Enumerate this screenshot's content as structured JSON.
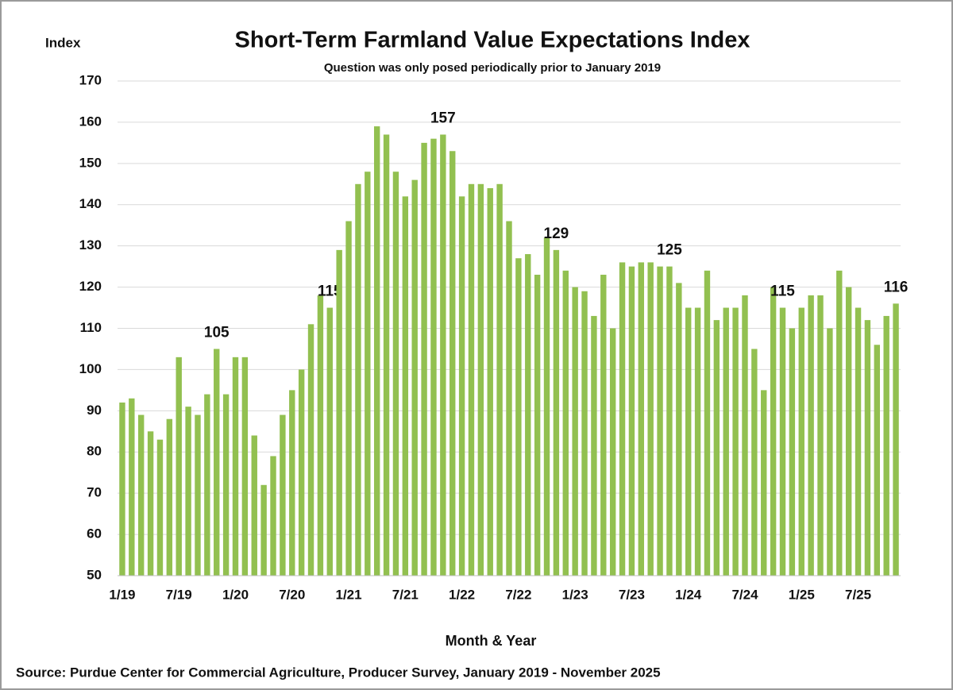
{
  "chart_data": {
    "type": "bar",
    "title": "Short-Term Farmland Value Expectations Index",
    "subtitle": "Question was only posed periodically prior to January 2019",
    "y_axis_label": "Index",
    "x_axis_label": "Month & Year",
    "source": "Source: Purdue Center for Commercial Agriculture, Producer Survey, January 2019 - November 2025",
    "categories": [
      "1/19",
      null,
      null,
      null,
      null,
      null,
      "7/19",
      null,
      null,
      null,
      null,
      null,
      "1/20",
      null,
      null,
      null,
      null,
      null,
      "7/20",
      null,
      null,
      null,
      null,
      null,
      "1/21",
      null,
      null,
      null,
      null,
      null,
      "7/21",
      null,
      null,
      null,
      null,
      null,
      "1/22",
      null,
      null,
      null,
      null,
      null,
      "7/22",
      null,
      null,
      null,
      null,
      null,
      "1/23",
      null,
      null,
      null,
      null,
      null,
      "7/23",
      null,
      null,
      null,
      null,
      null,
      "1/24",
      null,
      null,
      null,
      null,
      null,
      "7/24",
      null,
      null,
      null,
      null,
      null,
      "1/25",
      null,
      null,
      null,
      null,
      null,
      "7/25",
      null,
      null,
      null,
      null
    ],
    "values": [
      92,
      93,
      89,
      85,
      83,
      88,
      103,
      91,
      89,
      94,
      105,
      94,
      103,
      103,
      84,
      72,
      79,
      89,
      95,
      100,
      111,
      118,
      115,
      129,
      136,
      145,
      148,
      159,
      157,
      148,
      142,
      146,
      155,
      156,
      157,
      153,
      142,
      145,
      145,
      144,
      145,
      136,
      127,
      128,
      123,
      132,
      129,
      124,
      120,
      119,
      113,
      123,
      110,
      126,
      125,
      126,
      126,
      125,
      125,
      121,
      115,
      115,
      124,
      112,
      115,
      115,
      118,
      105,
      95,
      120,
      115,
      110,
      115,
      118,
      118,
      110,
      124,
      120,
      115,
      112,
      106,
      113,
      116
    ],
    "value_labels": [
      null,
      null,
      null,
      null,
      null,
      null,
      null,
      null,
      null,
      null,
      "105",
      null,
      null,
      null,
      null,
      null,
      null,
      null,
      null,
      null,
      null,
      null,
      "115",
      null,
      null,
      null,
      null,
      null,
      null,
      null,
      null,
      null,
      null,
      null,
      "157",
      null,
      null,
      null,
      null,
      null,
      null,
      null,
      null,
      null,
      null,
      null,
      "129",
      null,
      null,
      null,
      null,
      null,
      null,
      null,
      null,
      null,
      null,
      null,
      "125",
      null,
      null,
      null,
      null,
      null,
      null,
      null,
      null,
      null,
      null,
      null,
      "115",
      null,
      null,
      null,
      null,
      null,
      null,
      null,
      null,
      null,
      null,
      null,
      "116"
    ],
    "color": "#92c050",
    "ylim": [
      50,
      170
    ],
    "yticks": [
      50,
      60,
      70,
      80,
      90,
      100,
      110,
      120,
      130,
      140,
      150,
      160,
      170
    ],
    "grid": true
  }
}
